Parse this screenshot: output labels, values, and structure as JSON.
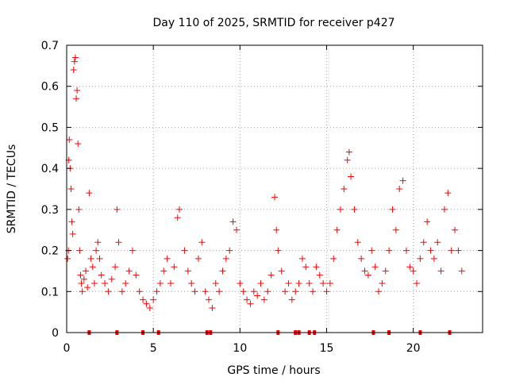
{
  "chart_data": {
    "type": "scatter",
    "title": "Day 110 of 2025, SRMTID for receiver p427",
    "xlabel": "GPS time / hours",
    "ylabel": "SRMTID / TECUs",
    "xlim": [
      0,
      24
    ],
    "ylim": [
      0,
      0.7
    ],
    "x_ticks": [
      0,
      5,
      10,
      15,
      20
    ],
    "x_tick_labels": [
      "0",
      "5",
      "10",
      "15",
      "20"
    ],
    "y_ticks": [
      0,
      0.1,
      0.2,
      0.3,
      0.4,
      0.5,
      0.6,
      0.7
    ],
    "y_tick_labels": [
      "0",
      "0.1",
      "0.2",
      "0.3",
      "0.4",
      "0.5",
      "0.6",
      "0.7"
    ],
    "grid": true,
    "marker": "plus",
    "series": [
      {
        "name": "SRMTID",
        "color": "#ff0000",
        "points": [
          [
            0.05,
            0.18
          ],
          [
            0.1,
            0.2
          ],
          [
            0.12,
            0.42
          ],
          [
            0.15,
            0.47
          ],
          [
            0.2,
            0.4
          ],
          [
            0.25,
            0.35
          ],
          [
            0.3,
            0.27
          ],
          [
            0.35,
            0.24
          ],
          [
            0.4,
            0.64
          ],
          [
            0.45,
            0.66
          ],
          [
            0.5,
            0.67
          ],
          [
            0.55,
            0.57
          ],
          [
            0.6,
            0.59
          ],
          [
            0.65,
            0.46
          ],
          [
            0.7,
            0.3
          ],
          [
            0.75,
            0.2
          ],
          [
            0.8,
            0.14
          ],
          [
            0.85,
            0.12
          ],
          [
            0.9,
            0.1
          ],
          [
            1.0,
            0.13
          ],
          [
            1.1,
            0.15
          ],
          [
            1.2,
            0.11
          ],
          [
            1.3,
            0.34
          ],
          [
            1.4,
            0.18
          ],
          [
            1.5,
            0.16
          ],
          [
            1.6,
            0.12
          ],
          [
            1.7,
            0.2
          ],
          [
            1.8,
            0.22
          ],
          [
            1.9,
            0.18
          ],
          [
            2.0,
            0.14
          ],
          [
            2.2,
            0.12
          ],
          [
            2.4,
            0.1
          ],
          [
            2.6,
            0.13
          ],
          [
            2.8,
            0.16
          ],
          [
            2.9,
            0.3
          ],
          [
            3.0,
            0.22
          ],
          [
            3.2,
            0.1
          ],
          [
            3.4,
            0.12
          ],
          [
            3.6,
            0.15
          ],
          [
            3.8,
            0.2
          ],
          [
            4.0,
            0.14
          ],
          [
            4.2,
            0.1
          ],
          [
            4.4,
            0.08
          ],
          [
            4.6,
            0.07
          ],
          [
            4.8,
            0.06
          ],
          [
            5.0,
            0.08
          ],
          [
            5.2,
            0.1
          ],
          [
            5.4,
            0.12
          ],
          [
            5.6,
            0.15
          ],
          [
            5.8,
            0.18
          ],
          [
            6.0,
            0.12
          ],
          [
            6.2,
            0.16
          ],
          [
            6.4,
            0.28
          ],
          [
            6.5,
            0.3
          ],
          [
            6.8,
            0.2
          ],
          [
            7.0,
            0.15
          ],
          [
            7.2,
            0.12
          ],
          [
            7.4,
            0.1
          ],
          [
            7.6,
            0.18
          ],
          [
            7.8,
            0.22
          ],
          [
            8.0,
            0.1
          ],
          [
            8.2,
            0.08
          ],
          [
            8.4,
            0.06
          ],
          [
            8.6,
            0.12
          ],
          [
            8.8,
            0.1
          ],
          [
            9.0,
            0.15
          ],
          [
            9.2,
            0.18
          ],
          [
            9.4,
            0.2
          ],
          [
            9.6,
            0.27
          ],
          [
            9.8,
            0.25
          ],
          [
            10.0,
            0.12
          ],
          [
            10.2,
            0.1
          ],
          [
            10.4,
            0.08
          ],
          [
            10.6,
            0.07
          ],
          [
            10.8,
            0.1
          ],
          [
            11.0,
            0.09
          ],
          [
            11.2,
            0.12
          ],
          [
            11.4,
            0.08
          ],
          [
            11.6,
            0.1
          ],
          [
            11.8,
            0.14
          ],
          [
            12.0,
            0.33
          ],
          [
            12.1,
            0.25
          ],
          [
            12.2,
            0.2
          ],
          [
            12.4,
            0.15
          ],
          [
            12.6,
            0.1
          ],
          [
            12.8,
            0.12
          ],
          [
            13.0,
            0.08
          ],
          [
            13.2,
            0.1
          ],
          [
            13.4,
            0.12
          ],
          [
            13.6,
            0.18
          ],
          [
            13.8,
            0.16
          ],
          [
            14.0,
            0.12
          ],
          [
            14.2,
            0.1
          ],
          [
            14.4,
            0.16
          ],
          [
            14.6,
            0.14
          ],
          [
            14.8,
            0.12
          ],
          [
            15.0,
            0.1
          ],
          [
            15.2,
            0.12
          ],
          [
            15.4,
            0.18
          ],
          [
            15.6,
            0.25
          ],
          [
            15.8,
            0.3
          ],
          [
            16.0,
            0.35
          ],
          [
            16.2,
            0.42
          ],
          [
            16.3,
            0.44
          ],
          [
            16.4,
            0.38
          ],
          [
            16.6,
            0.3
          ],
          [
            16.8,
            0.22
          ],
          [
            17.0,
            0.18
          ],
          [
            17.2,
            0.15
          ],
          [
            17.4,
            0.14
          ],
          [
            17.6,
            0.2
          ],
          [
            17.8,
            0.16
          ],
          [
            18.0,
            0.1
          ],
          [
            18.2,
            0.12
          ],
          [
            18.4,
            0.15
          ],
          [
            18.6,
            0.2
          ],
          [
            18.8,
            0.3
          ],
          [
            19.0,
            0.25
          ],
          [
            19.2,
            0.35
          ],
          [
            19.4,
            0.37
          ],
          [
            19.6,
            0.2
          ],
          [
            19.8,
            0.16
          ],
          [
            20.0,
            0.15
          ],
          [
            20.2,
            0.12
          ],
          [
            20.4,
            0.18
          ],
          [
            20.6,
            0.22
          ],
          [
            20.8,
            0.27
          ],
          [
            21.0,
            0.2
          ],
          [
            21.2,
            0.18
          ],
          [
            21.4,
            0.22
          ],
          [
            21.6,
            0.15
          ],
          [
            21.8,
            0.3
          ],
          [
            22.0,
            0.34
          ],
          [
            22.2,
            0.2
          ],
          [
            22.4,
            0.25
          ],
          [
            22.6,
            0.2
          ],
          [
            22.8,
            0.15
          ]
        ]
      }
    ],
    "baseline_markers_x": [
      1.3,
      2.9,
      4.4,
      5.3,
      8.1,
      8.3,
      12.2,
      13.2,
      13.4,
      14.0,
      14.3,
      17.7,
      18.6,
      20.4,
      22.1
    ]
  }
}
